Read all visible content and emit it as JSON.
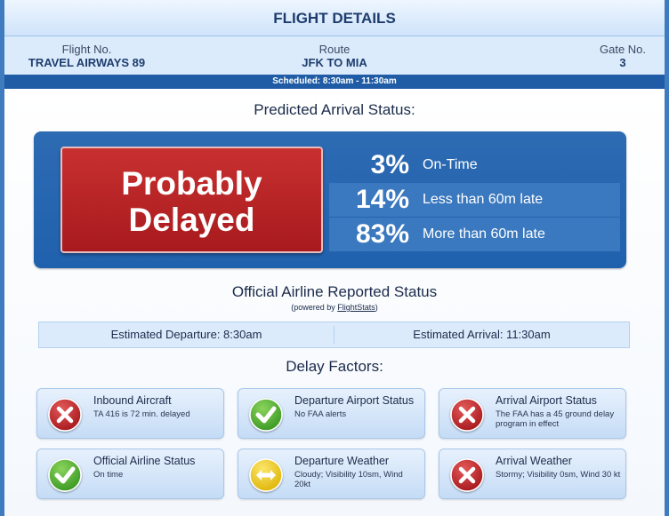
{
  "header": {
    "title": "FLIGHT DETAILS"
  },
  "flight": {
    "number_label": "Flight No.",
    "number_value": "TRAVEL AIRWAYS 89",
    "route_label": "Route",
    "route_value": "JFK TO MIA",
    "gate_label": "Gate No.",
    "gate_value": "3",
    "scheduled": "Scheduled: 8:30am - 11:30am"
  },
  "prediction": {
    "title": "Predicted Arrival Status:",
    "status_line1": "Probably",
    "status_line2": "Delayed",
    "status_color": "#b52226",
    "stats": [
      {
        "pct": "3%",
        "label": "On-Time"
      },
      {
        "pct": "14%",
        "label": "Less than 60m late"
      },
      {
        "pct": "83%",
        "label": "More than 60m late"
      }
    ]
  },
  "official": {
    "title": "Official Airline Reported Status",
    "powered_prefix": "(powered by ",
    "powered_link": "FlightStats",
    "powered_suffix": ")",
    "est_departure": "Estimated Departure: 8:30am",
    "est_arrival": "Estimated Arrival: 11:30am"
  },
  "delay": {
    "title": "Delay Factors:",
    "factors": [
      {
        "title": "Inbound Aircraft",
        "detail": "TA 416 is 72 min. delayed",
        "icon": "red-x-icon"
      },
      {
        "title": "Departure Airport Status",
        "detail": "No FAA alerts",
        "icon": "green-check-icon"
      },
      {
        "title": "Arrival Airport Status",
        "detail": "The FAA has a 45 ground delay program in effect",
        "icon": "red-x-icon"
      },
      {
        "title": "Official Airline Status",
        "detail": "On time",
        "icon": "green-check-icon"
      },
      {
        "title": "Departure Weather",
        "detail": "Cloudy; Visibility 10sm, Wind 20kt",
        "icon": "yellow-arrows-icon"
      },
      {
        "title": "Arrival Weather",
        "detail": "Stormy; Visibility 0sm, Wind 30 kt",
        "icon": "red-x-icon"
      }
    ]
  },
  "colors": {
    "red": "#c2272d",
    "green": "#4caf32",
    "yellow": "#f2cf1a",
    "blue": "#2061ad"
  }
}
